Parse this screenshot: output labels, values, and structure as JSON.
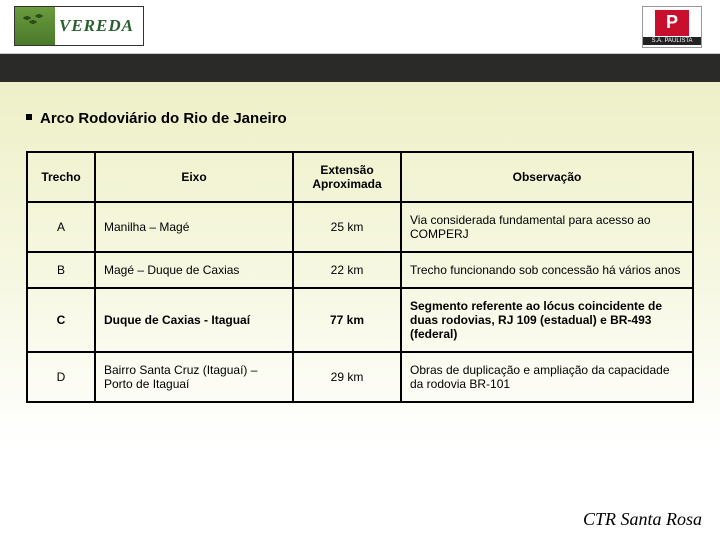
{
  "logos": {
    "left_name": "VEREDA",
    "right_letter": "P",
    "right_sub": "S.A. PAULISTA"
  },
  "heading": "Arco Rodoviário do Rio de Janeiro",
  "table": {
    "columns": [
      "Trecho",
      "Eixo",
      "Extensão Aproximada",
      "Observação"
    ],
    "rows": [
      {
        "trecho": "A",
        "eixo": "Manilha – Magé",
        "ext": "25 km",
        "obs": "Via considerada fundamental para acesso ao COMPERJ",
        "bold": false
      },
      {
        "trecho": "B",
        "eixo": "Magé – Duque de Caxias",
        "ext": "22 km",
        "obs": "Trecho funcionando sob concessão há vários anos",
        "bold": false
      },
      {
        "trecho": "C",
        "eixo": "Duque de Caxias - Itaguaí",
        "ext": "77 km",
        "obs": "Segmento referente ao lócus coincidente de duas rodovias, RJ 109 (estadual) e BR-493 (federal)",
        "bold": true
      },
      {
        "trecho": "D",
        "eixo": "Bairro Santa Cruz (Itaguaí) – Porto de Itaguaí",
        "ext": "29 km",
        "obs": "Obras de duplicação e ampliação da capacidade da rodovia BR-101",
        "bold": false
      }
    ]
  },
  "footer": "CTR Santa Rosa",
  "colors": {
    "dark_strip": "#2a2a28",
    "bg_gradient_top": "#eef0c8",
    "border": "#000000",
    "red_badge": "#c8102e",
    "green_logo": "#2a6030"
  }
}
